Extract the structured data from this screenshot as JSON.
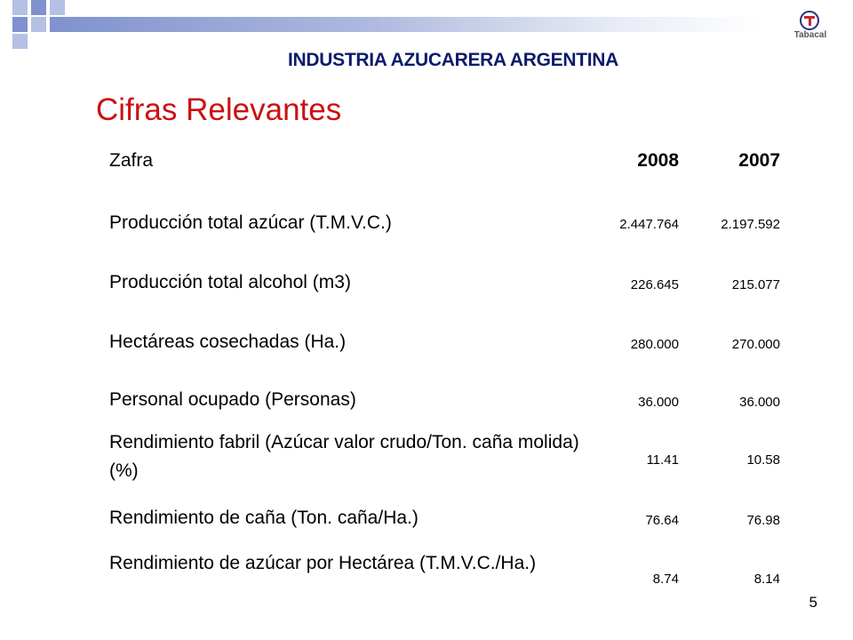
{
  "header": {
    "title": "INDUSTRIA AZUCARERA ARGENTINA",
    "subtitle": "Cifras Relevantes",
    "logo_text": "Tabacal"
  },
  "table": {
    "columns": [
      "Zafra",
      "2008",
      "2007"
    ],
    "rows": [
      {
        "label": "Producción total  azúcar (T.M.V.C.)",
        "v2008": "2.447.764",
        "v2007": "2.197.592"
      },
      {
        "label": "Producción total alcohol (m3)",
        "v2008": "226.645",
        "v2007": "215.077"
      },
      {
        "label": "Hectáreas cosechadas (Ha.)",
        "v2008": "280.000",
        "v2007": "270.000"
      },
      {
        "label": "Personal ocupado (Personas)",
        "v2008": "36.000",
        "v2007": "36.000"
      },
      {
        "label": "Rendimiento fabril (Azúcar valor crudo/Ton. caña molida)(%)",
        "v2008": "11.41",
        "v2007": "10.58"
      },
      {
        "label": "Rendimiento de caña (Ton. caña/Ha.)",
        "v2008": "76.64",
        "v2007": "76.98"
      },
      {
        "label": "Rendimiento de azúcar por Hectárea (T.M.V.C./Ha.)",
        "v2008": "8.74",
        "v2007": "8.14"
      }
    ]
  },
  "footer": {
    "page_number": "5"
  },
  "colors": {
    "title": "#0b1b6b",
    "subtitle": "#cc1111",
    "accent": "#7f92cd"
  }
}
